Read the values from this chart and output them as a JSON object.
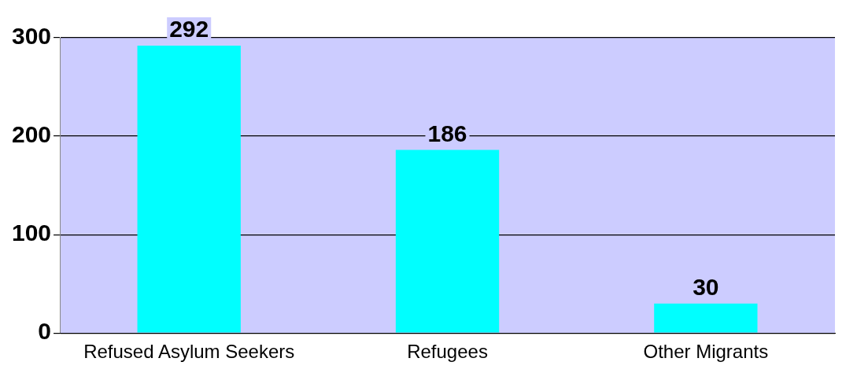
{
  "chart_data": {
    "type": "bar",
    "categories": [
      "Refused Asylum Seekers",
      "Refugees",
      "Other Migrants"
    ],
    "values": [
      292,
      186,
      30
    ],
    "color": "#00ffff",
    "ylim": [
      0,
      300
    ],
    "yticks": [
      0,
      100,
      200,
      300
    ],
    "grid": "y",
    "data_labels": true
  }
}
